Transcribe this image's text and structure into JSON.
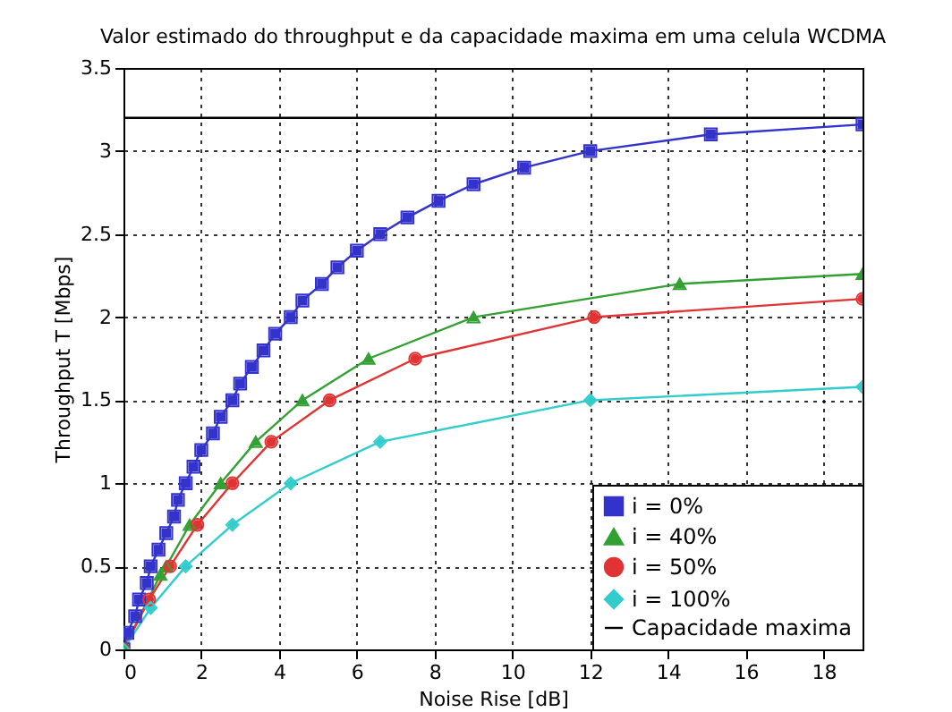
{
  "chart_data": {
    "type": "line",
    "title": "Valor estimado do throughput e da capacidade maxima em uma celula WCDMA",
    "xlabel": "Noise Rise [dB]",
    "ylabel": "Throughput T [Mbps]",
    "xlim": [
      0,
      19
    ],
    "xticks": [
      0,
      2,
      4,
      6,
      8,
      10,
      12,
      14,
      16,
      18
    ],
    "ylim": [
      0,
      3.5
    ],
    "yticks": [
      0,
      0.5,
      1,
      1.5,
      2,
      2.5,
      3,
      3.5
    ],
    "grid": true,
    "legend": "bottom right",
    "line_style": "solid",
    "series": [
      {
        "name": "i = 0%",
        "color": "#3333cc",
        "marker": "square",
        "x": [
          0,
          0.1,
          0.3,
          0.4,
          0.6,
          0.7,
          0.9,
          1.1,
          1.3,
          1.4,
          1.6,
          1.8,
          2.0,
          2.3,
          2.5,
          2.8,
          3.0,
          3.3,
          3.6,
          3.9,
          4.3,
          4.6,
          5.1,
          5.5,
          6.0,
          6.6,
          7.3,
          8.1,
          9.0,
          10.3,
          12.0,
          15.1,
          19
        ],
        "values": [
          0,
          0.1,
          0.2,
          0.3,
          0.4,
          0.5,
          0.6,
          0.7,
          0.8,
          0.9,
          1.0,
          1.1,
          1.2,
          1.3,
          1.4,
          1.5,
          1.6,
          1.7,
          1.8,
          1.9,
          2.0,
          2.1,
          2.2,
          2.3,
          2.4,
          2.5,
          2.6,
          2.7,
          2.8,
          2.9,
          3.0,
          3.1,
          3.16
        ]
      },
      {
        "name": "i = 40%",
        "color": "#33a033",
        "marker": "triangle",
        "x": [
          0,
          0.95,
          1.1,
          1.7,
          2.5,
          3.4,
          4.6,
          6.3,
          9.0,
          14.3,
          19
        ],
        "values": [
          0,
          0.45,
          0.5,
          0.75,
          1.0,
          1.25,
          1.5,
          1.75,
          2.0,
          2.2,
          2.26
        ]
      },
      {
        "name": "i = 50%",
        "color": "#e03333",
        "marker": "circle",
        "x": [
          0,
          0.66,
          1.2,
          1.9,
          2.8,
          3.8,
          5.3,
          7.5,
          12.1,
          19
        ],
        "values": [
          0,
          0.3,
          0.5,
          0.75,
          1.0,
          1.25,
          1.5,
          1.75,
          2.0,
          2.11
        ]
      },
      {
        "name": "i = 100%",
        "color": "#33cccc",
        "marker": "diamond",
        "x": [
          0,
          0.7,
          1.6,
          2.8,
          4.3,
          6.6,
          12.0,
          19
        ],
        "values": [
          0,
          0.25,
          0.5,
          0.75,
          1.0,
          1.25,
          1.5,
          1.58
        ]
      },
      {
        "name": "Capacidade maxima",
        "color": "#000000",
        "marker": "none",
        "x": [
          0,
          19
        ],
        "values": [
          3.2,
          3.2
        ]
      }
    ]
  }
}
